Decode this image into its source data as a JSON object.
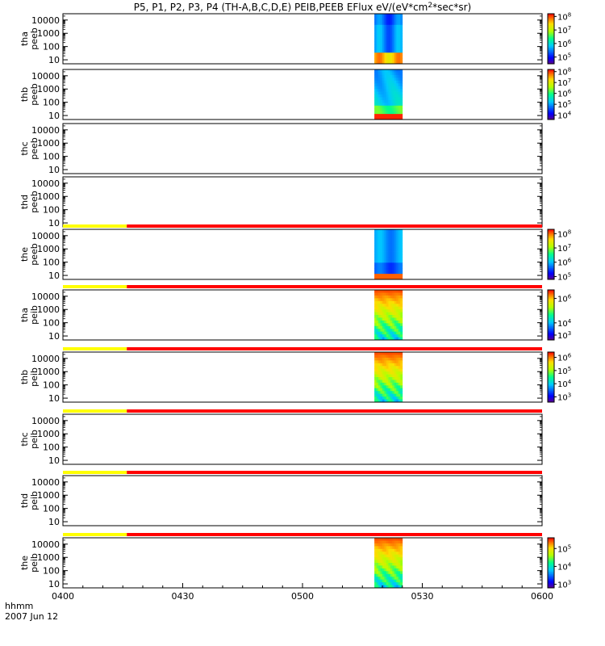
{
  "title": "P5, P1, P2, P3, P4 (TH-A,B,C,D,E) PEIB,PEEB EFlux eV/(eV*cm^2*sec*sr)",
  "time_axis": {
    "label": "hhmm",
    "date": "2007 Jun 12",
    "ticks": [
      "0400",
      "0430",
      "0500",
      "0530",
      "0600"
    ],
    "range": [
      "04:00",
      "06:00"
    ]
  },
  "y_ticks": [
    "10000",
    "1000",
    "100",
    "10"
  ],
  "colors": {
    "ephemeris_yellow": "#ffff00",
    "ephemeris_red": "#ff0000"
  },
  "chart_data": [
    {
      "type": "heatmap",
      "panel": "thc-peeb",
      "ylabel": [
        "tha",
        "peeb"
      ],
      "ylog": true,
      "ylim": [
        5,
        30000
      ],
      "data_span": [
        "05:18",
        "05:25"
      ],
      "colorbar": {
        "labels": [
          "10^8",
          "10^7",
          "10^6",
          "10^5"
        ],
        "log_range": [
          4.5,
          8.2
        ]
      },
      "profile": "peeb_a"
    },
    {
      "type": "heatmap",
      "panel": "thb-peeb",
      "ylabel": [
        "thb",
        "peeb"
      ],
      "ylog": true,
      "ylim": [
        5,
        30000
      ],
      "data_span": [
        "05:18",
        "05:25"
      ],
      "colorbar": {
        "labels": [
          "10^8",
          "10^7",
          "10^6",
          "10^5",
          "10^4"
        ],
        "log_range": [
          3.6,
          8.2
        ]
      },
      "profile": "peeb_b"
    },
    {
      "type": "heatmap",
      "panel": "thc-peeb-empty",
      "ylabel": [
        "thc",
        "peeb"
      ],
      "ylog": true,
      "ylim": [
        5,
        30000
      ],
      "data_span": null,
      "colorbar": null
    },
    {
      "type": "heatmap",
      "panel": "thd-peeb",
      "ylabel": [
        "thd",
        "peeb"
      ],
      "ylog": true,
      "ylim": [
        5,
        30000
      ],
      "data_span": null,
      "colorbar": null
    },
    {
      "type": "heatmap",
      "panel": "the-peeb",
      "ylabel": [
        "the",
        "peeb"
      ],
      "ylog": true,
      "ylim": [
        5,
        30000
      ],
      "data_span": [
        "05:18",
        "05:25"
      ],
      "colorbar": {
        "labels": [
          "10^8",
          "10^7",
          "10^6",
          "10^5"
        ],
        "log_range": [
          4.8,
          8.3
        ]
      },
      "profile": "peeb_e",
      "ephemeris_bar": {
        "yellow_until": "04:16"
      }
    },
    {
      "type": "heatmap",
      "panel": "tha-peib",
      "ylabel": [
        "tha",
        "peib"
      ],
      "ylog": true,
      "ylim": [
        5,
        30000
      ],
      "data_span": [
        "05:18",
        "05:25"
      ],
      "colorbar": {
        "labels": [
          "10^6",
          "10^4",
          "10^3"
        ],
        "log_range": [
          2.6,
          6.7
        ]
      },
      "profile": "peib",
      "ephemeris_bar": {
        "yellow_until": "04:16"
      }
    },
    {
      "type": "heatmap",
      "panel": "thb-peib",
      "ylabel": [
        "thb",
        "peib"
      ],
      "ylog": true,
      "ylim": [
        5,
        30000
      ],
      "data_span": [
        "05:18",
        "05:25"
      ],
      "colorbar": {
        "labels": [
          "10^6",
          "10^5",
          "10^4",
          "10^3"
        ],
        "log_range": [
          2.6,
          6.4
        ]
      },
      "profile": "peib",
      "ephemeris_bar": {
        "yellow_until": "04:16"
      }
    },
    {
      "type": "heatmap",
      "panel": "thc-peib",
      "ylabel": [
        "thc",
        "peib"
      ],
      "ylog": true,
      "ylim": [
        5,
        30000
      ],
      "data_span": null,
      "colorbar": null,
      "ephemeris_bar": {
        "yellow_until": "04:16"
      }
    },
    {
      "type": "heatmap",
      "panel": "thd-peib",
      "ylabel": [
        "thd",
        "peib"
      ],
      "ylog": true,
      "ylim": [
        5,
        30000
      ],
      "data_span": null,
      "colorbar": null,
      "ephemeris_bar": {
        "yellow_until": "04:16"
      }
    },
    {
      "type": "heatmap",
      "panel": "the-peib",
      "ylabel": [
        "the",
        "peib"
      ],
      "ylog": true,
      "ylim": [
        5,
        30000
      ],
      "data_span": [
        "05:18",
        "05:25"
      ],
      "colorbar": {
        "labels": [
          "10^5",
          "10^4",
          "10^3"
        ],
        "log_range": [
          2.8,
          5.6
        ]
      },
      "profile": "peib",
      "ephemeris_bar": {
        "yellow_until": "04:16"
      }
    }
  ]
}
